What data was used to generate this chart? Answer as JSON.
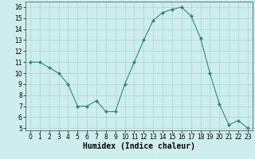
{
  "x": [
    0,
    1,
    2,
    3,
    4,
    5,
    6,
    7,
    8,
    9,
    10,
    11,
    12,
    13,
    14,
    15,
    16,
    17,
    18,
    19,
    20,
    21,
    22,
    23
  ],
  "y": [
    11,
    11,
    10.5,
    10,
    9,
    7,
    7,
    7.5,
    6.5,
    6.5,
    9,
    11,
    13,
    14.8,
    15.5,
    15.8,
    16,
    15.2,
    13.2,
    10,
    7.2,
    5.3,
    5.7,
    5
  ],
  "line_color": "#2e8b74",
  "marker": "D",
  "marker_size": 2,
  "bg_color": "#ceeeed",
  "grid_color": "#aad4d2",
  "xlabel": "Humidex (Indice chaleur)",
  "ylim": [
    4.8,
    16.5
  ],
  "xlim": [
    -0.5,
    23.5
  ],
  "yticks": [
    5,
    6,
    7,
    8,
    9,
    10,
    11,
    12,
    13,
    14,
    15,
    16
  ],
  "xticks": [
    0,
    1,
    2,
    3,
    4,
    5,
    6,
    7,
    8,
    9,
    10,
    11,
    12,
    13,
    14,
    15,
    16,
    17,
    18,
    19,
    20,
    21,
    22,
    23
  ],
  "tick_fontsize": 5.5,
  "xlabel_fontsize": 7,
  "xlabel_fontweight": "bold"
}
